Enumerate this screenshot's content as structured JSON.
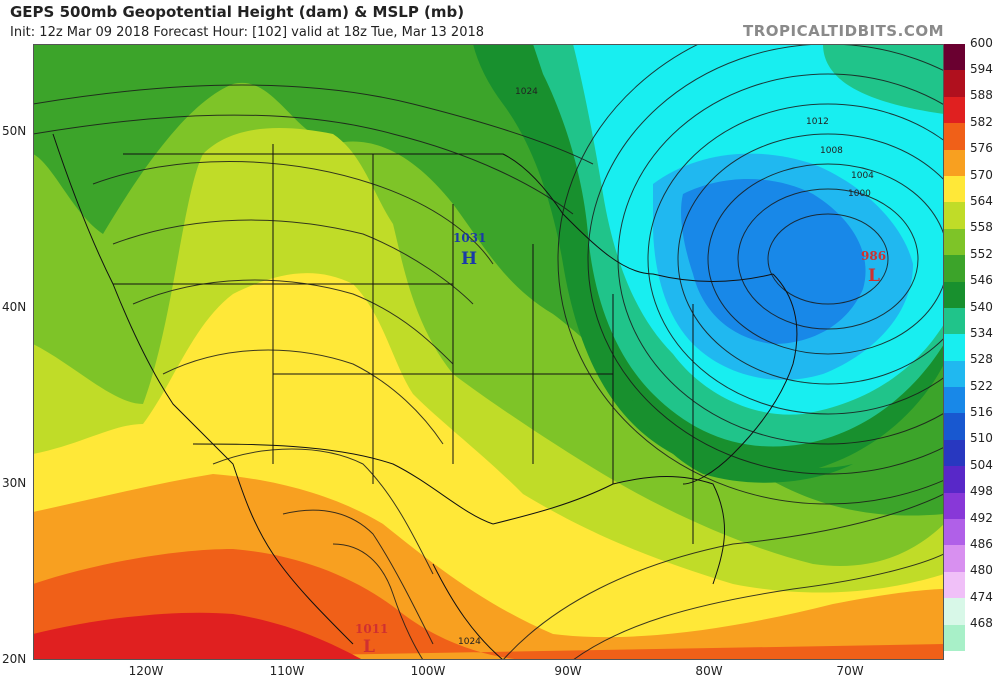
{
  "header": {
    "title": "GEPS 500mb Geopotential Height (dam) & MSLP (mb)",
    "subtitle": "Init: 12z Mar 09 2018   Forecast Hour: [102]   valid at 18z Tue, Mar 13 2018",
    "brand": "TROPICALTIDBITS.COM"
  },
  "axes": {
    "lat_labels": [
      "50N",
      "40N",
      "30N",
      "20N"
    ],
    "lon_labels": [
      "120W",
      "110W",
      "100W",
      "90W",
      "80W",
      "70W"
    ]
  },
  "legend": {
    "levels": [
      {
        "label": "600",
        "color": "#6a0030"
      },
      {
        "label": "594",
        "color": "#b0101e"
      },
      {
        "label": "588",
        "color": "#e02020"
      },
      {
        "label": "582",
        "color": "#f06018"
      },
      {
        "label": "576",
        "color": "#f8a020"
      },
      {
        "label": "570",
        "color": "#ffe838"
      },
      {
        "label": "564",
        "color": "#c0dc28"
      },
      {
        "label": "558",
        "color": "#7ec428"
      },
      {
        "label": "552",
        "color": "#3ca42a"
      },
      {
        "label": "546",
        "color": "#18902e"
      },
      {
        "label": "540",
        "color": "#20c48a"
      },
      {
        "label": "534",
        "color": "#18eef0"
      },
      {
        "label": "528",
        "color": "#20b8f0"
      },
      {
        "label": "522",
        "color": "#1888e8"
      },
      {
        "label": "516",
        "color": "#1858d0"
      },
      {
        "label": "510",
        "color": "#2838c0"
      },
      {
        "label": "504",
        "color": "#5828c8"
      },
      {
        "label": "498",
        "color": "#8838d8"
      },
      {
        "label": "492",
        "color": "#b060e8"
      },
      {
        "label": "486",
        "color": "#d890f0"
      },
      {
        "label": "480",
        "color": "#f0c0f8"
      },
      {
        "label": "474",
        "color": "#d8f8e8"
      },
      {
        "label": "468",
        "color": "#a8f0c8"
      }
    ]
  },
  "pressure_centers": [
    {
      "type": "H",
      "value": "1031",
      "color": "#1a3aa8"
    },
    {
      "type": "L",
      "value": "986",
      "color": "#d03030"
    },
    {
      "type": "L",
      "value": "1011",
      "color": "#d03030"
    }
  ],
  "isobar_labels": [
    "1024",
    "1012",
    "1008",
    "1004",
    "1000",
    "1024"
  ]
}
